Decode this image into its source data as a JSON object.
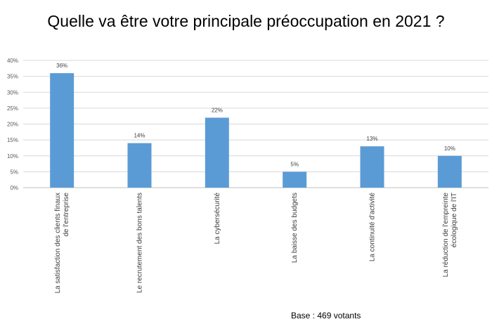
{
  "title": "Quelle va être votre principale préoccupation en 2021 ?",
  "footnote": "Base : 469 votants",
  "colors": {
    "bar": "#5b9bd5",
    "grid": "#d9d9d9",
    "axis": "#bfbfbf"
  },
  "chart_data": {
    "type": "bar",
    "title": "Quelle va être votre principale préoccupation en 2021 ?",
    "categories": [
      [
        "La satisfaction des clients finaux",
        "de l'entreprise"
      ],
      [
        "Le recrutement des bons talents"
      ],
      [
        "La cybersécurité"
      ],
      [
        "La baisse des budgets"
      ],
      [
        "La continuité d'activité"
      ],
      [
        "La réduction de l'empreinte",
        "écologique de l'IT"
      ]
    ],
    "values": [
      36,
      14,
      22,
      5,
      13,
      10
    ],
    "value_labels": [
      "36%",
      "14%",
      "22%",
      "5%",
      "13%",
      "10%"
    ],
    "ylim": [
      0,
      40
    ],
    "yticks": [
      0,
      5,
      10,
      15,
      20,
      25,
      30,
      35,
      40
    ],
    "ytick_labels": [
      "0%",
      "5%",
      "10%",
      "15%",
      "20%",
      "25%",
      "30%",
      "35%",
      "40%"
    ],
    "grid": true,
    "legend": "none"
  }
}
